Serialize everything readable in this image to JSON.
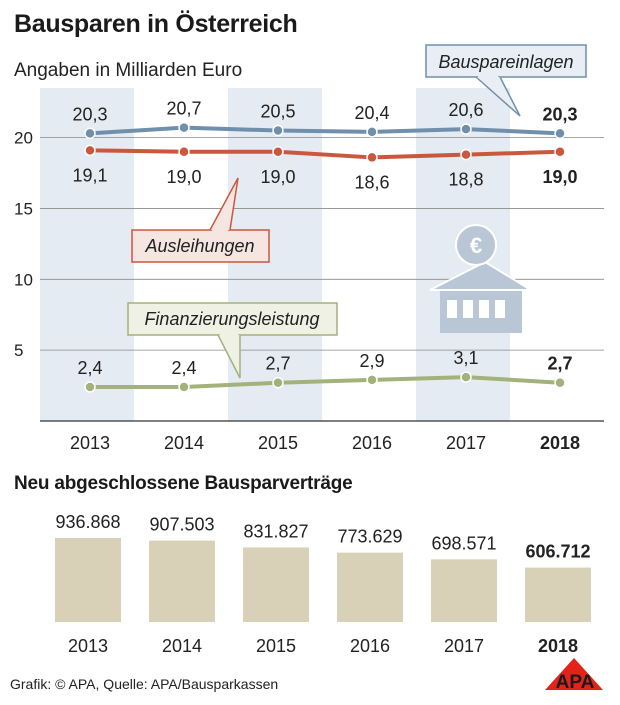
{
  "header": {
    "title": "Bausparen in Österreich",
    "subtitle": "Angaben in Milliarden Euro"
  },
  "colors": {
    "bausparen": "#6f8fac",
    "ausleihungen": "#c9583f",
    "finanzierung": "#a3b27a",
    "bars": "#d8d1b8",
    "stripe": "#e5ebf2"
  },
  "chart_data": [
    {
      "type": "line",
      "title": "Bausparen in Österreich",
      "ylabel": "Angaben in Milliarden Euro",
      "x": [
        "2013",
        "2014",
        "2015",
        "2016",
        "2017",
        "2018"
      ],
      "x_bold_last": true,
      "yticks": [
        5,
        10,
        15,
        20
      ],
      "ylim": [
        0,
        23.5
      ],
      "series": [
        {
          "name": "Bauspareinlagen",
          "key": "bausparen",
          "values": [
            20.3,
            20.7,
            20.5,
            20.4,
            20.6,
            20.3
          ],
          "labels": [
            "20,3",
            "20,7",
            "20,5",
            "20,4",
            "20,6",
            "20,3"
          ]
        },
        {
          "name": "Ausleihungen",
          "key": "ausleihungen",
          "values": [
            19.1,
            19.0,
            19.0,
            18.6,
            18.8,
            19.0
          ],
          "labels": [
            "19,1",
            "19,0",
            "19,0",
            "18,6",
            "18,8",
            "19,0"
          ]
        },
        {
          "name": "Finanzierungsleistung",
          "key": "finanzierung",
          "values": [
            2.4,
            2.4,
            2.7,
            2.9,
            3.1,
            2.7
          ],
          "labels": [
            "2,4",
            "2,4",
            "2,7",
            "2,9",
            "3,1",
            "2,7"
          ]
        }
      ]
    },
    {
      "type": "bar",
      "title": "Neu abgeschlossene Bausparverträge",
      "categories": [
        "2013",
        "2014",
        "2015",
        "2016",
        "2017",
        "2018"
      ],
      "values": [
        936868,
        907503,
        831827,
        773629,
        698571,
        606712
      ],
      "labels": [
        "936.868",
        "907.503",
        "831.827",
        "773.629",
        "698.571",
        "606.712"
      ]
    }
  ],
  "footer": {
    "source": "Grafik: © APA, Quelle: APA/Bausparkassen",
    "logo": "APA"
  }
}
